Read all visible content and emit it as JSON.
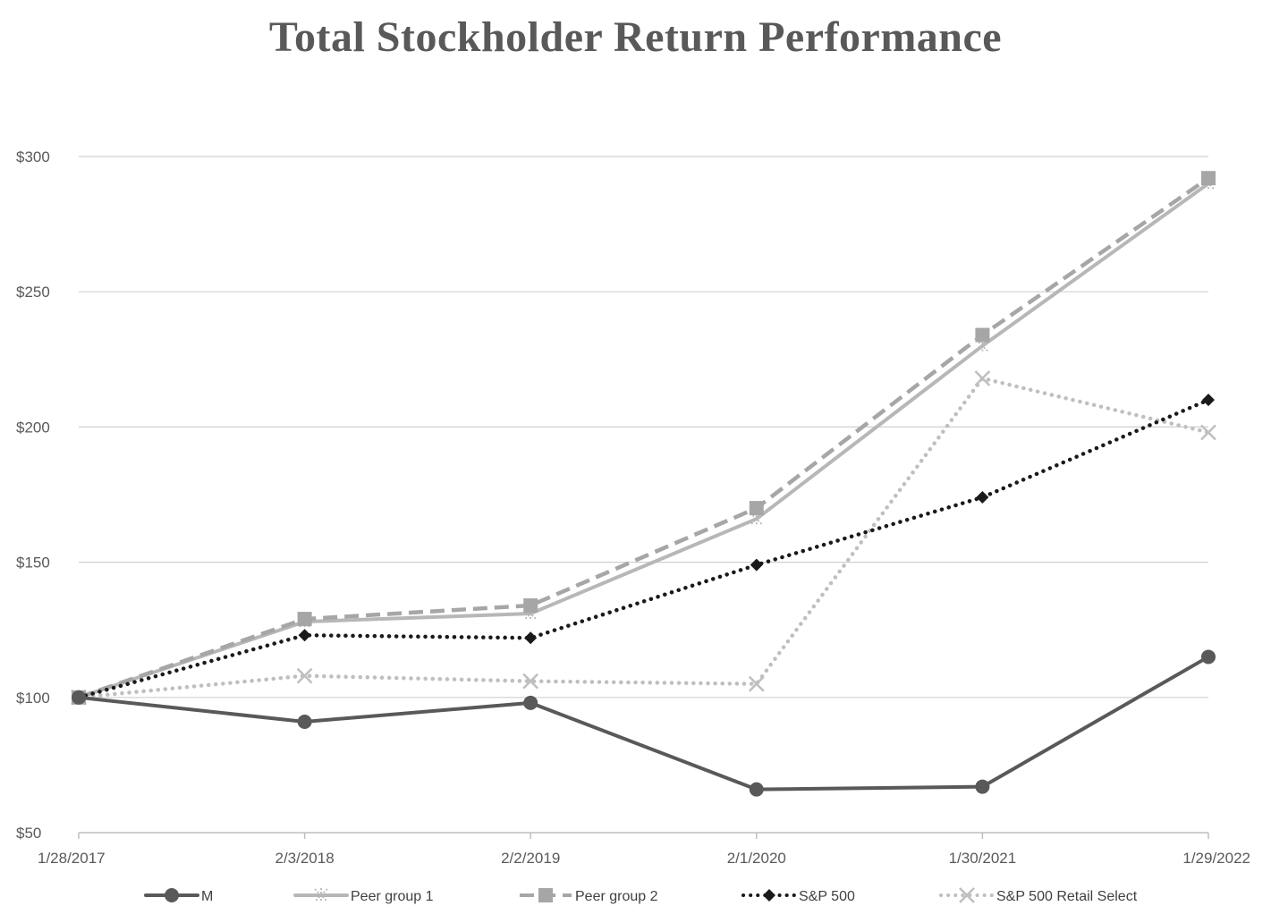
{
  "chart_data": {
    "type": "line",
    "title": "Total Stockholder Return Performance",
    "xlabel": "",
    "ylabel": "",
    "categories": [
      "1/28/2017",
      "2/3/2018",
      "2/2/2019",
      "2/1/2020",
      "1/30/2021",
      "1/29/2022"
    ],
    "ylim": [
      50,
      300
    ],
    "yticks": [
      50,
      100,
      150,
      200,
      250,
      300
    ],
    "ytick_labels": [
      "$50",
      "$100",
      "$150",
      "$200",
      "$250",
      "$300"
    ],
    "grid": true,
    "legend_position": "bottom",
    "series": [
      {
        "name": "M",
        "values": [
          100,
          91,
          98,
          66,
          67,
          115
        ],
        "color": "#595959",
        "style": "solid",
        "marker": "circle"
      },
      {
        "name": "Peer group 1",
        "values": [
          100,
          128,
          131,
          166,
          230,
          290
        ],
        "color": "#b7b7b7",
        "style": "solid",
        "marker": "star"
      },
      {
        "name": "Peer group 2",
        "values": [
          100,
          129,
          134,
          170,
          234,
          292
        ],
        "color": "#a6a6a6",
        "style": "dashed",
        "marker": "square"
      },
      {
        "name": "S&P 500",
        "values": [
          100,
          123,
          122,
          149,
          174,
          210
        ],
        "color": "#1a1a1a",
        "style": "dotted",
        "marker": "diamond"
      },
      {
        "name": "S&P 500 Retail Select",
        "values": [
          100,
          108,
          106,
          105,
          218,
          198
        ],
        "color": "#bfbfbf",
        "style": "dotted",
        "marker": "x"
      }
    ]
  }
}
